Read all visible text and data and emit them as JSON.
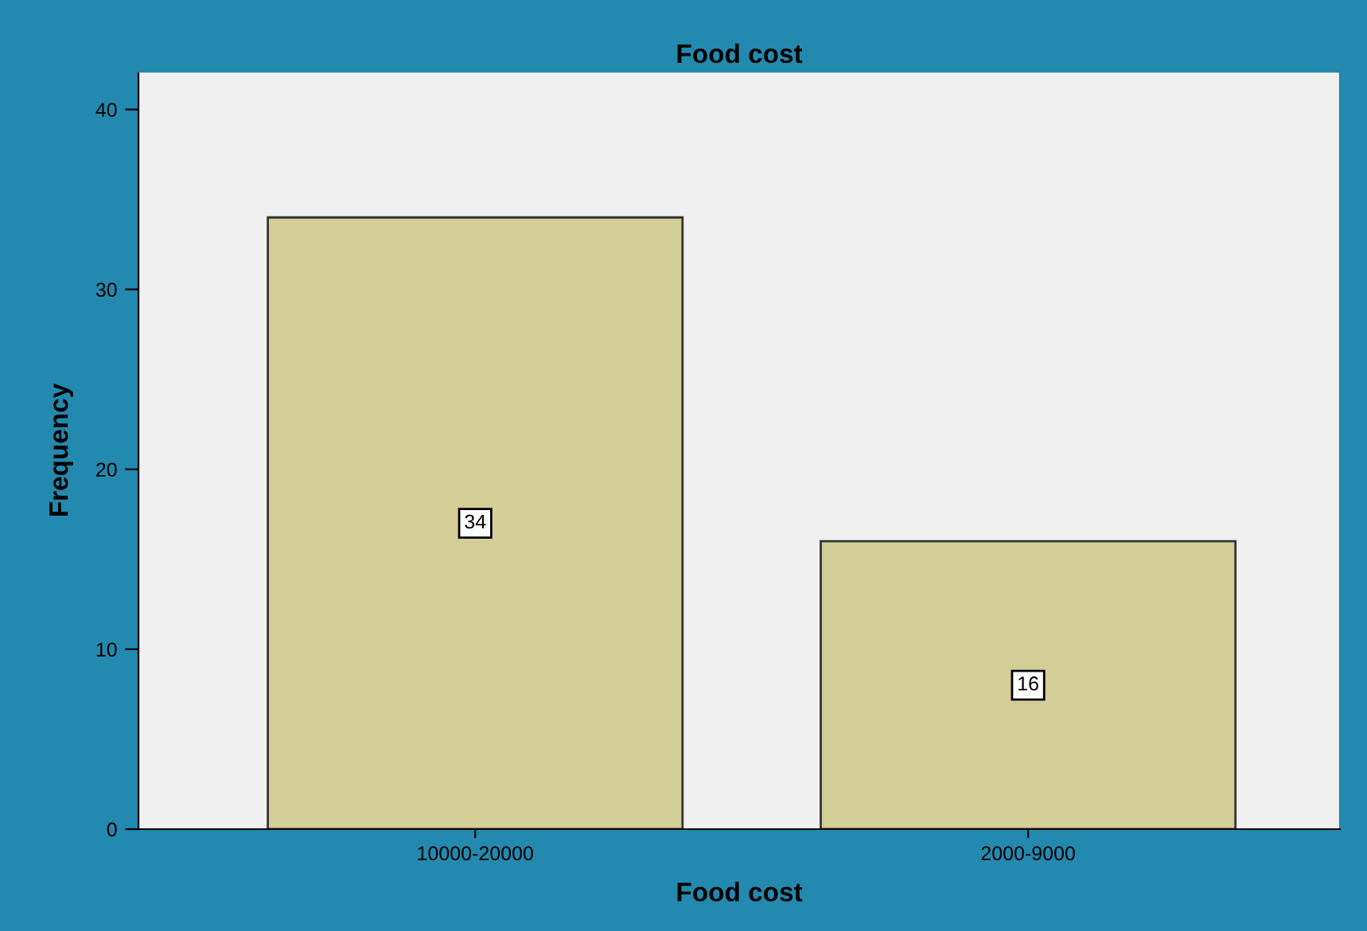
{
  "chart_data": {
    "type": "bar",
    "title": "Food cost",
    "xlabel": "Food cost",
    "ylabel": "Frequency",
    "categories": [
      "10000-20000",
      "2000-9000"
    ],
    "values": [
      34,
      16
    ],
    "color": "#d3ce97",
    "ylim": [
      0,
      42.1
    ],
    "yticks": [
      0,
      10,
      20,
      30,
      40
    ],
    "data_labels": true,
    "grid": false
  }
}
